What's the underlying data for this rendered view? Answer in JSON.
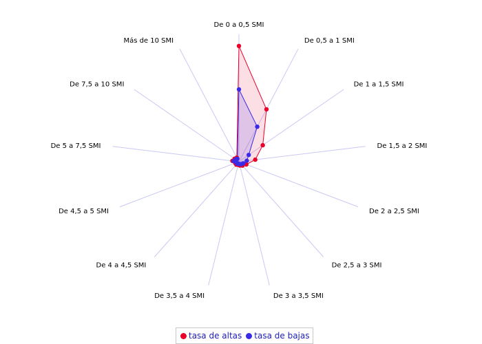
{
  "chart_data": {
    "type": "radar",
    "categories": [
      "De 0 a 0,5 SMI",
      "De 0,5 a 1 SMI",
      "De 1 a 1,5 SMI",
      "De 1,5 a 2 SMI",
      "De 2 a 2,5 SMI",
      "De 2,5 a 3 SMI",
      "De 3 a 3,5 SMI",
      "De 3,5 a 4 SMI",
      "De 4 a 4,5 SMI",
      "De 4,5 a 5 SMI",
      "De 5 a 7,5 SMI",
      "De 7,5 a 10 SMI",
      "Más de 10 SMI"
    ],
    "series": [
      {
        "name": "tasa de altas",
        "color": "#e8002a",
        "fill": "rgba(240, 80, 110, 0.18)",
        "values": [
          0.176,
          0.09,
          0.044,
          0.025,
          0.012,
          0.008,
          0.006,
          0.005,
          0.006,
          0.006,
          0.01,
          0.008,
          0.007
        ]
      },
      {
        "name": "tasa de bajas",
        "color": "#3a2ae6",
        "fill": "rgba(110, 90, 240, 0.20)",
        "values": [
          0.11,
          0.06,
          0.018,
          0.012,
          0.007,
          0.005,
          0.004,
          0.003,
          0.004,
          0.004,
          0.008,
          0.006,
          0.005
        ]
      }
    ],
    "rmax": 0.18,
    "grid": "spokes"
  }
}
